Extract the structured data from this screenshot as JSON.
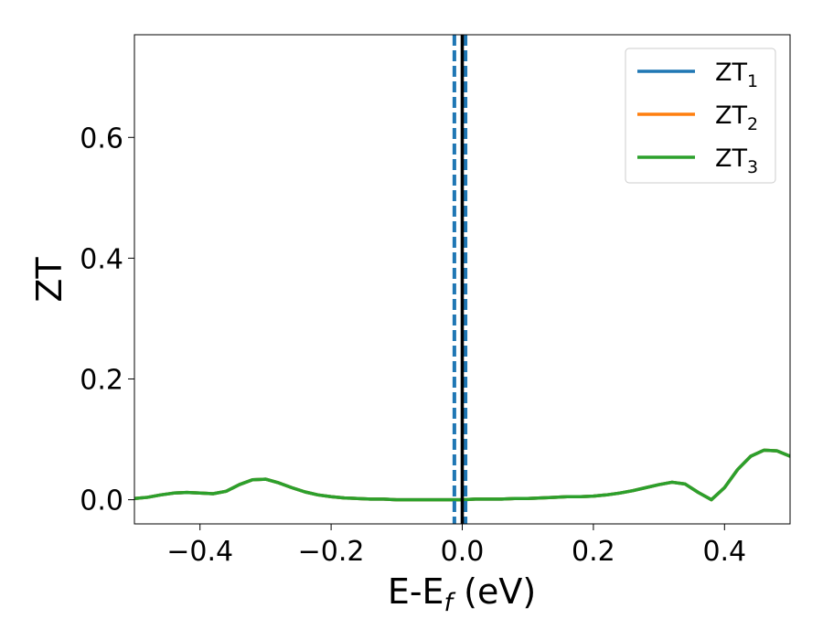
{
  "chart_data": {
    "type": "line",
    "xlabel": "E-E",
    "xlabel_sub": "f",
    "xlabel_unit": " (eV)",
    "ylabel": "ZT",
    "xlim": [
      -0.5,
      0.5
    ],
    "ylim": [
      -0.04,
      0.77
    ],
    "xticks": [
      -0.4,
      -0.2,
      0.0,
      0.2,
      0.4
    ],
    "xtick_labels": [
      "−0.4",
      "−0.2",
      "0.0",
      "0.2",
      "0.4"
    ],
    "yticks": [
      0.0,
      0.2,
      0.4,
      0.6
    ],
    "ytick_labels": [
      "0.0",
      "0.2",
      "0.4",
      "0.6"
    ],
    "grid": false,
    "legend_position": "top-right",
    "reference_lines": [
      {
        "x": 0.0,
        "style": "solid",
        "color": "#000000"
      },
      {
        "x": -0.012,
        "style": "dashed",
        "color": "#1f77b4"
      },
      {
        "x": 0.005,
        "style": "dashed",
        "color": "#1f77b4"
      }
    ],
    "x": [
      -0.5,
      -0.48,
      -0.46,
      -0.44,
      -0.42,
      -0.4,
      -0.38,
      -0.36,
      -0.34,
      -0.32,
      -0.3,
      -0.28,
      -0.26,
      -0.24,
      -0.22,
      -0.2,
      -0.18,
      -0.16,
      -0.14,
      -0.12,
      -0.1,
      -0.08,
      -0.06,
      -0.04,
      -0.02,
      0.0,
      0.02,
      0.04,
      0.06,
      0.08,
      0.1,
      0.12,
      0.14,
      0.16,
      0.18,
      0.2,
      0.22,
      0.24,
      0.26,
      0.28,
      0.3,
      0.32,
      0.34,
      0.36,
      0.38,
      0.4,
      0.42,
      0.44,
      0.46,
      0.48,
      0.5
    ],
    "series": [
      {
        "name": "ZT",
        "name_sub": "1",
        "color": "#1f77b4",
        "values": [
          0.002,
          0.004,
          0.008,
          0.011,
          0.012,
          0.011,
          0.01,
          0.014,
          0.025,
          0.033,
          0.034,
          0.028,
          0.02,
          0.013,
          0.008,
          0.005,
          0.003,
          0.002,
          0.001,
          0.001,
          0.0,
          0.0,
          0.0,
          0.0,
          0.0,
          0.0,
          0.001,
          0.001,
          0.001,
          0.002,
          0.002,
          0.003,
          0.004,
          0.005,
          0.005,
          0.006,
          0.008,
          0.011,
          0.015,
          0.02,
          0.025,
          0.029,
          0.026,
          0.012,
          0.0,
          0.02,
          0.05,
          0.072,
          0.082,
          0.081,
          0.072
        ]
      },
      {
        "name": "ZT",
        "name_sub": "2",
        "color": "#ff7f0e",
        "values": [
          0.002,
          0.004,
          0.008,
          0.011,
          0.012,
          0.011,
          0.01,
          0.014,
          0.025,
          0.033,
          0.034,
          0.028,
          0.02,
          0.013,
          0.008,
          0.005,
          0.003,
          0.002,
          0.001,
          0.001,
          0.0,
          0.0,
          0.0,
          0.0,
          0.0,
          0.0,
          0.001,
          0.001,
          0.001,
          0.002,
          0.002,
          0.003,
          0.004,
          0.005,
          0.005,
          0.006,
          0.008,
          0.011,
          0.015,
          0.02,
          0.025,
          0.029,
          0.026,
          0.012,
          0.0,
          0.02,
          0.05,
          0.072,
          0.082,
          0.081,
          0.072
        ]
      },
      {
        "name": "ZT",
        "name_sub": "3",
        "color": "#2ca02c",
        "values": [
          0.002,
          0.004,
          0.008,
          0.011,
          0.012,
          0.011,
          0.01,
          0.014,
          0.025,
          0.033,
          0.034,
          0.028,
          0.02,
          0.013,
          0.008,
          0.005,
          0.003,
          0.002,
          0.001,
          0.001,
          0.0,
          0.0,
          0.0,
          0.0,
          0.0,
          0.0,
          0.001,
          0.001,
          0.001,
          0.002,
          0.002,
          0.003,
          0.004,
          0.005,
          0.005,
          0.006,
          0.008,
          0.011,
          0.015,
          0.02,
          0.025,
          0.029,
          0.026,
          0.012,
          0.0,
          0.02,
          0.05,
          0.072,
          0.082,
          0.081,
          0.072
        ]
      }
    ]
  }
}
